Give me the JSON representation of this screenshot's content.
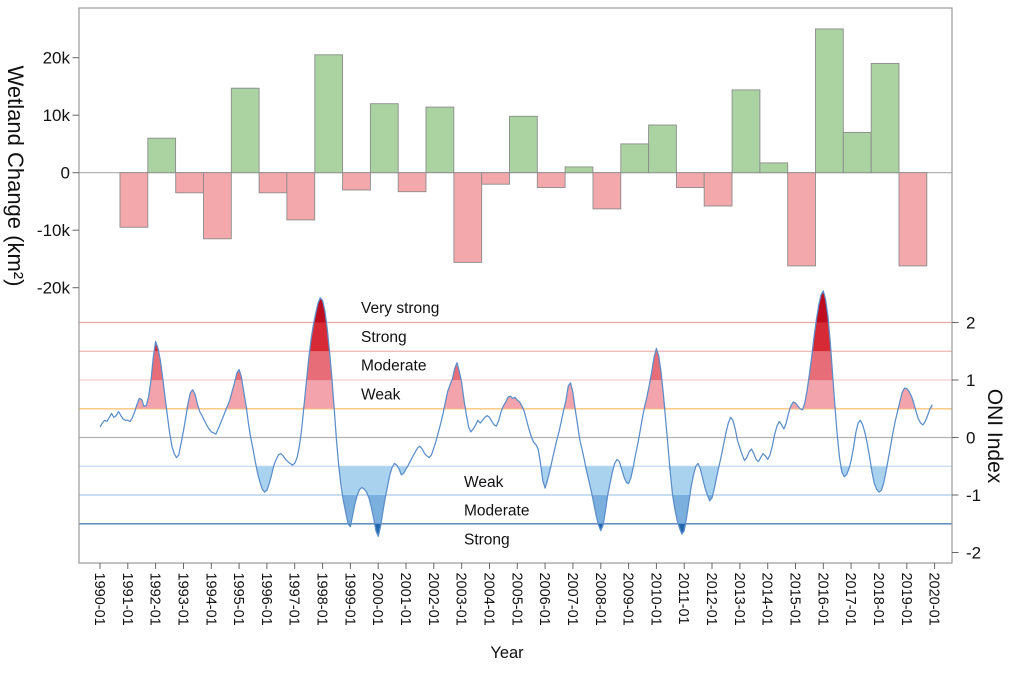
{
  "axes": {
    "x": {
      "label": "Year",
      "ticks": [
        "1990-01",
        "1991-01",
        "1992-01",
        "1993-01",
        "1994-01",
        "1995-01",
        "1996-01",
        "1997-01",
        "1998-01",
        "1999-01",
        "2000-01",
        "2001-01",
        "2002-01",
        "2003-01",
        "2004-01",
        "2005-01",
        "2006-01",
        "2007-01",
        "2008-01",
        "2009-01",
        "2010-01",
        "2011-01",
        "2012-01",
        "2013-01",
        "2014-01",
        "2015-01",
        "2016-01",
        "2017-01",
        "2018-01",
        "2019-01",
        "2020-01"
      ],
      "tick_years": [
        1990,
        1991,
        1992,
        1993,
        1994,
        1995,
        1996,
        1997,
        1998,
        1999,
        2000,
        2001,
        2002,
        2003,
        2004,
        2005,
        2006,
        2007,
        2008,
        2009,
        2010,
        2011,
        2012,
        2013,
        2014,
        2015,
        2016,
        2017,
        2018,
        2019,
        2020
      ]
    },
    "left_y": {
      "label": "Wetland Change (km²)",
      "ticks": [
        "20k",
        "10k",
        "0",
        "-10k",
        "-20k"
      ],
      "tick_values": [
        20000,
        10000,
        0,
        -10000,
        -20000
      ]
    },
    "right_y": {
      "label": "ONI Index",
      "ticks": [
        "2",
        "1",
        "0",
        "-1",
        "-2"
      ],
      "tick_values": [
        2,
        1,
        0,
        -1,
        -2
      ]
    }
  },
  "chart_data": [
    {
      "type": "bar",
      "name": "annual-wetland-change",
      "ylabel": "Wetland Change (km²)",
      "categories": [
        1991,
        1992,
        1993,
        1994,
        1995,
        1996,
        1997,
        1998,
        1999,
        2000,
        2001,
        2002,
        2003,
        2004,
        2005,
        2006,
        2007,
        2008,
        2009,
        2010,
        2011,
        2012,
        2013,
        2014,
        2015,
        2016,
        2017,
        2018,
        2019
      ],
      "values": [
        -9500,
        6000,
        -3500,
        -11500,
        14700,
        -3500,
        -8200,
        20500,
        -3000,
        12000,
        -3300,
        11400,
        -15600,
        -2000,
        9800,
        -2600,
        1000,
        -6300,
        5000,
        8300,
        -2600,
        -5800,
        14400,
        1700,
        -16200,
        25000,
        7000,
        19000,
        -16200
      ],
      "ylim": [
        -28650,
        28650
      ],
      "positive_color": "#abd3a1",
      "negative_color": "#f3a8ac",
      "bar_border_color": "#8c8c8c",
      "zero_line_color": "#ababab"
    },
    {
      "type": "line",
      "name": "oni-index-monthly",
      "ylabel": "ONI Index",
      "ylim": [
        -2.24,
        2.26
      ],
      "x_start": 1990.0,
      "x_step_years": 0.0833333,
      "line_color": "#5b8ec9",
      "values": [
        0.18,
        0.25,
        0.3,
        0.28,
        0.35,
        0.42,
        0.35,
        0.38,
        0.45,
        0.38,
        0.32,
        0.3,
        0.3,
        0.28,
        0.35,
        0.45,
        0.58,
        0.68,
        0.66,
        0.54,
        0.56,
        0.72,
        1.0,
        1.4,
        1.67,
        1.55,
        1.35,
        1.05,
        0.72,
        0.4,
        0.1,
        -0.15,
        -0.28,
        -0.35,
        -0.3,
        -0.1,
        0.12,
        0.35,
        0.6,
        0.78,
        0.83,
        0.75,
        0.58,
        0.45,
        0.38,
        0.3,
        0.22,
        0.15,
        0.1,
        0.08,
        0.06,
        0.15,
        0.25,
        0.35,
        0.45,
        0.55,
        0.65,
        0.8,
        0.95,
        1.12,
        1.18,
        1.05,
        0.8,
        0.55,
        0.25,
        0.0,
        -0.2,
        -0.42,
        -0.62,
        -0.78,
        -0.9,
        -0.95,
        -0.92,
        -0.8,
        -0.65,
        -0.48,
        -0.38,
        -0.3,
        -0.28,
        -0.32,
        -0.38,
        -0.42,
        -0.45,
        -0.48,
        -0.45,
        -0.35,
        -0.15,
        0.15,
        0.55,
        0.95,
        1.35,
        1.7,
        1.95,
        2.15,
        2.33,
        2.43,
        2.38,
        2.2,
        1.9,
        1.5,
        1.05,
        0.5,
        -0.05,
        -0.5,
        -0.85,
        -1.1,
        -1.3,
        -1.5,
        -1.55,
        -1.35,
        -1.15,
        -1.0,
        -0.9,
        -0.87,
        -0.9,
        -0.95,
        -1.05,
        -1.2,
        -1.4,
        -1.62,
        -1.72,
        -1.55,
        -1.3,
        -1.05,
        -0.85,
        -0.65,
        -0.52,
        -0.45,
        -0.48,
        -0.55,
        -0.65,
        -0.62,
        -0.55,
        -0.48,
        -0.4,
        -0.32,
        -0.25,
        -0.18,
        -0.15,
        -0.2,
        -0.28,
        -0.32,
        -0.35,
        -0.3,
        -0.18,
        -0.05,
        0.1,
        0.25,
        0.42,
        0.62,
        0.8,
        0.92,
        1.02,
        1.2,
        1.3,
        1.15,
        0.95,
        0.65,
        0.4,
        0.18,
        0.1,
        0.15,
        0.22,
        0.3,
        0.25,
        0.3,
        0.35,
        0.38,
        0.35,
        0.28,
        0.22,
        0.2,
        0.3,
        0.45,
        0.55,
        0.62,
        0.7,
        0.72,
        0.68,
        0.7,
        0.65,
        0.62,
        0.55,
        0.45,
        0.3,
        0.15,
        0.02,
        -0.08,
        -0.12,
        -0.2,
        -0.45,
        -0.75,
        -0.88,
        -0.75,
        -0.58,
        -0.4,
        -0.22,
        -0.05,
        0.1,
        0.28,
        0.48,
        0.65,
        0.9,
        0.95,
        0.78,
        0.48,
        0.22,
        -0.05,
        -0.22,
        -0.4,
        -0.6,
        -0.78,
        -0.95,
        -1.15,
        -1.35,
        -1.52,
        -1.62,
        -1.52,
        -1.28,
        -1.0,
        -0.8,
        -0.6,
        -0.45,
        -0.38,
        -0.42,
        -0.55,
        -0.68,
        -0.78,
        -0.8,
        -0.7,
        -0.52,
        -0.3,
        -0.1,
        0.12,
        0.35,
        0.55,
        0.72,
        0.92,
        1.15,
        1.4,
        1.55,
        1.42,
        1.15,
        0.75,
        0.3,
        -0.15,
        -0.62,
        -1.0,
        -1.25,
        -1.45,
        -1.58,
        -1.68,
        -1.62,
        -1.4,
        -1.12,
        -0.85,
        -0.65,
        -0.5,
        -0.45,
        -0.55,
        -0.72,
        -0.88,
        -1.0,
        -1.1,
        -1.05,
        -0.88,
        -0.68,
        -0.5,
        -0.32,
        -0.12,
        0.08,
        0.25,
        0.35,
        0.3,
        0.15,
        -0.05,
        -0.18,
        -0.3,
        -0.4,
        -0.35,
        -0.25,
        -0.2,
        -0.28,
        -0.38,
        -0.42,
        -0.35,
        -0.28,
        -0.32,
        -0.38,
        -0.3,
        -0.15,
        0.05,
        0.2,
        0.28,
        0.22,
        0.15,
        0.25,
        0.42,
        0.55,
        0.62,
        0.6,
        0.55,
        0.5,
        0.48,
        0.6,
        0.82,
        1.1,
        1.4,
        1.75,
        2.05,
        2.3,
        2.48,
        2.55,
        2.4,
        2.1,
        1.65,
        1.1,
        0.55,
        0.05,
        -0.35,
        -0.6,
        -0.68,
        -0.65,
        -0.55,
        -0.4,
        -0.18,
        0.08,
        0.25,
        0.3,
        0.22,
        0.08,
        -0.12,
        -0.35,
        -0.6,
        -0.8,
        -0.9,
        -0.95,
        -0.92,
        -0.8,
        -0.6,
        -0.38,
        -0.15,
        0.08,
        0.28,
        0.45,
        0.62,
        0.78,
        0.86,
        0.85,
        0.8,
        0.72,
        0.6,
        0.45,
        0.32,
        0.25,
        0.22,
        0.28,
        0.38,
        0.5,
        0.57
      ],
      "thresholds": [
        {
          "value": 2.0,
          "color": "#e9a6a6",
          "label": "Very strong",
          "side": "above"
        },
        {
          "value": 1.5,
          "color": "#f1bcbc",
          "label": "Strong",
          "side": "above"
        },
        {
          "value": 1.0,
          "color": "#f5cdcd",
          "label": "Moderate",
          "side": "above"
        },
        {
          "value": 0.5,
          "color": "#f8c478",
          "label": "Weak",
          "side": "above"
        },
        {
          "value": 0.0,
          "color": "#b3b3b3",
          "label": "",
          "side": ""
        },
        {
          "value": -0.5,
          "color": "#cbdef2",
          "label": "Weak",
          "side": "below"
        },
        {
          "value": -1.0,
          "color": "#a9cae9",
          "label": "Moderate",
          "side": "below"
        },
        {
          "value": -1.5,
          "color": "#4c80b8",
          "label": "Strong",
          "side": "below"
        }
      ],
      "bands_positive": [
        {
          "min": 0.5,
          "max": 1.0,
          "color": "#f2a3ab",
          "label": "Weak"
        },
        {
          "min": 1.0,
          "max": 1.5,
          "color": "#e76e78",
          "label": "Moderate"
        },
        {
          "min": 1.5,
          "max": 2.0,
          "color": "#d62b37",
          "label": "Strong"
        },
        {
          "min": 2.0,
          "max": null,
          "color": "#bd0d1f",
          "label": "Very strong"
        }
      ],
      "bands_negative": [
        {
          "min": -1.0,
          "max": -0.5,
          "color": "#a9d2ef",
          "label": "Weak"
        },
        {
          "min": -1.5,
          "max": -1.0,
          "color": "#7bb0de",
          "label": "Moderate"
        },
        {
          "min": null,
          "max": -1.5,
          "color": "#2267ae",
          "label": "Strong"
        }
      ]
    }
  ]
}
